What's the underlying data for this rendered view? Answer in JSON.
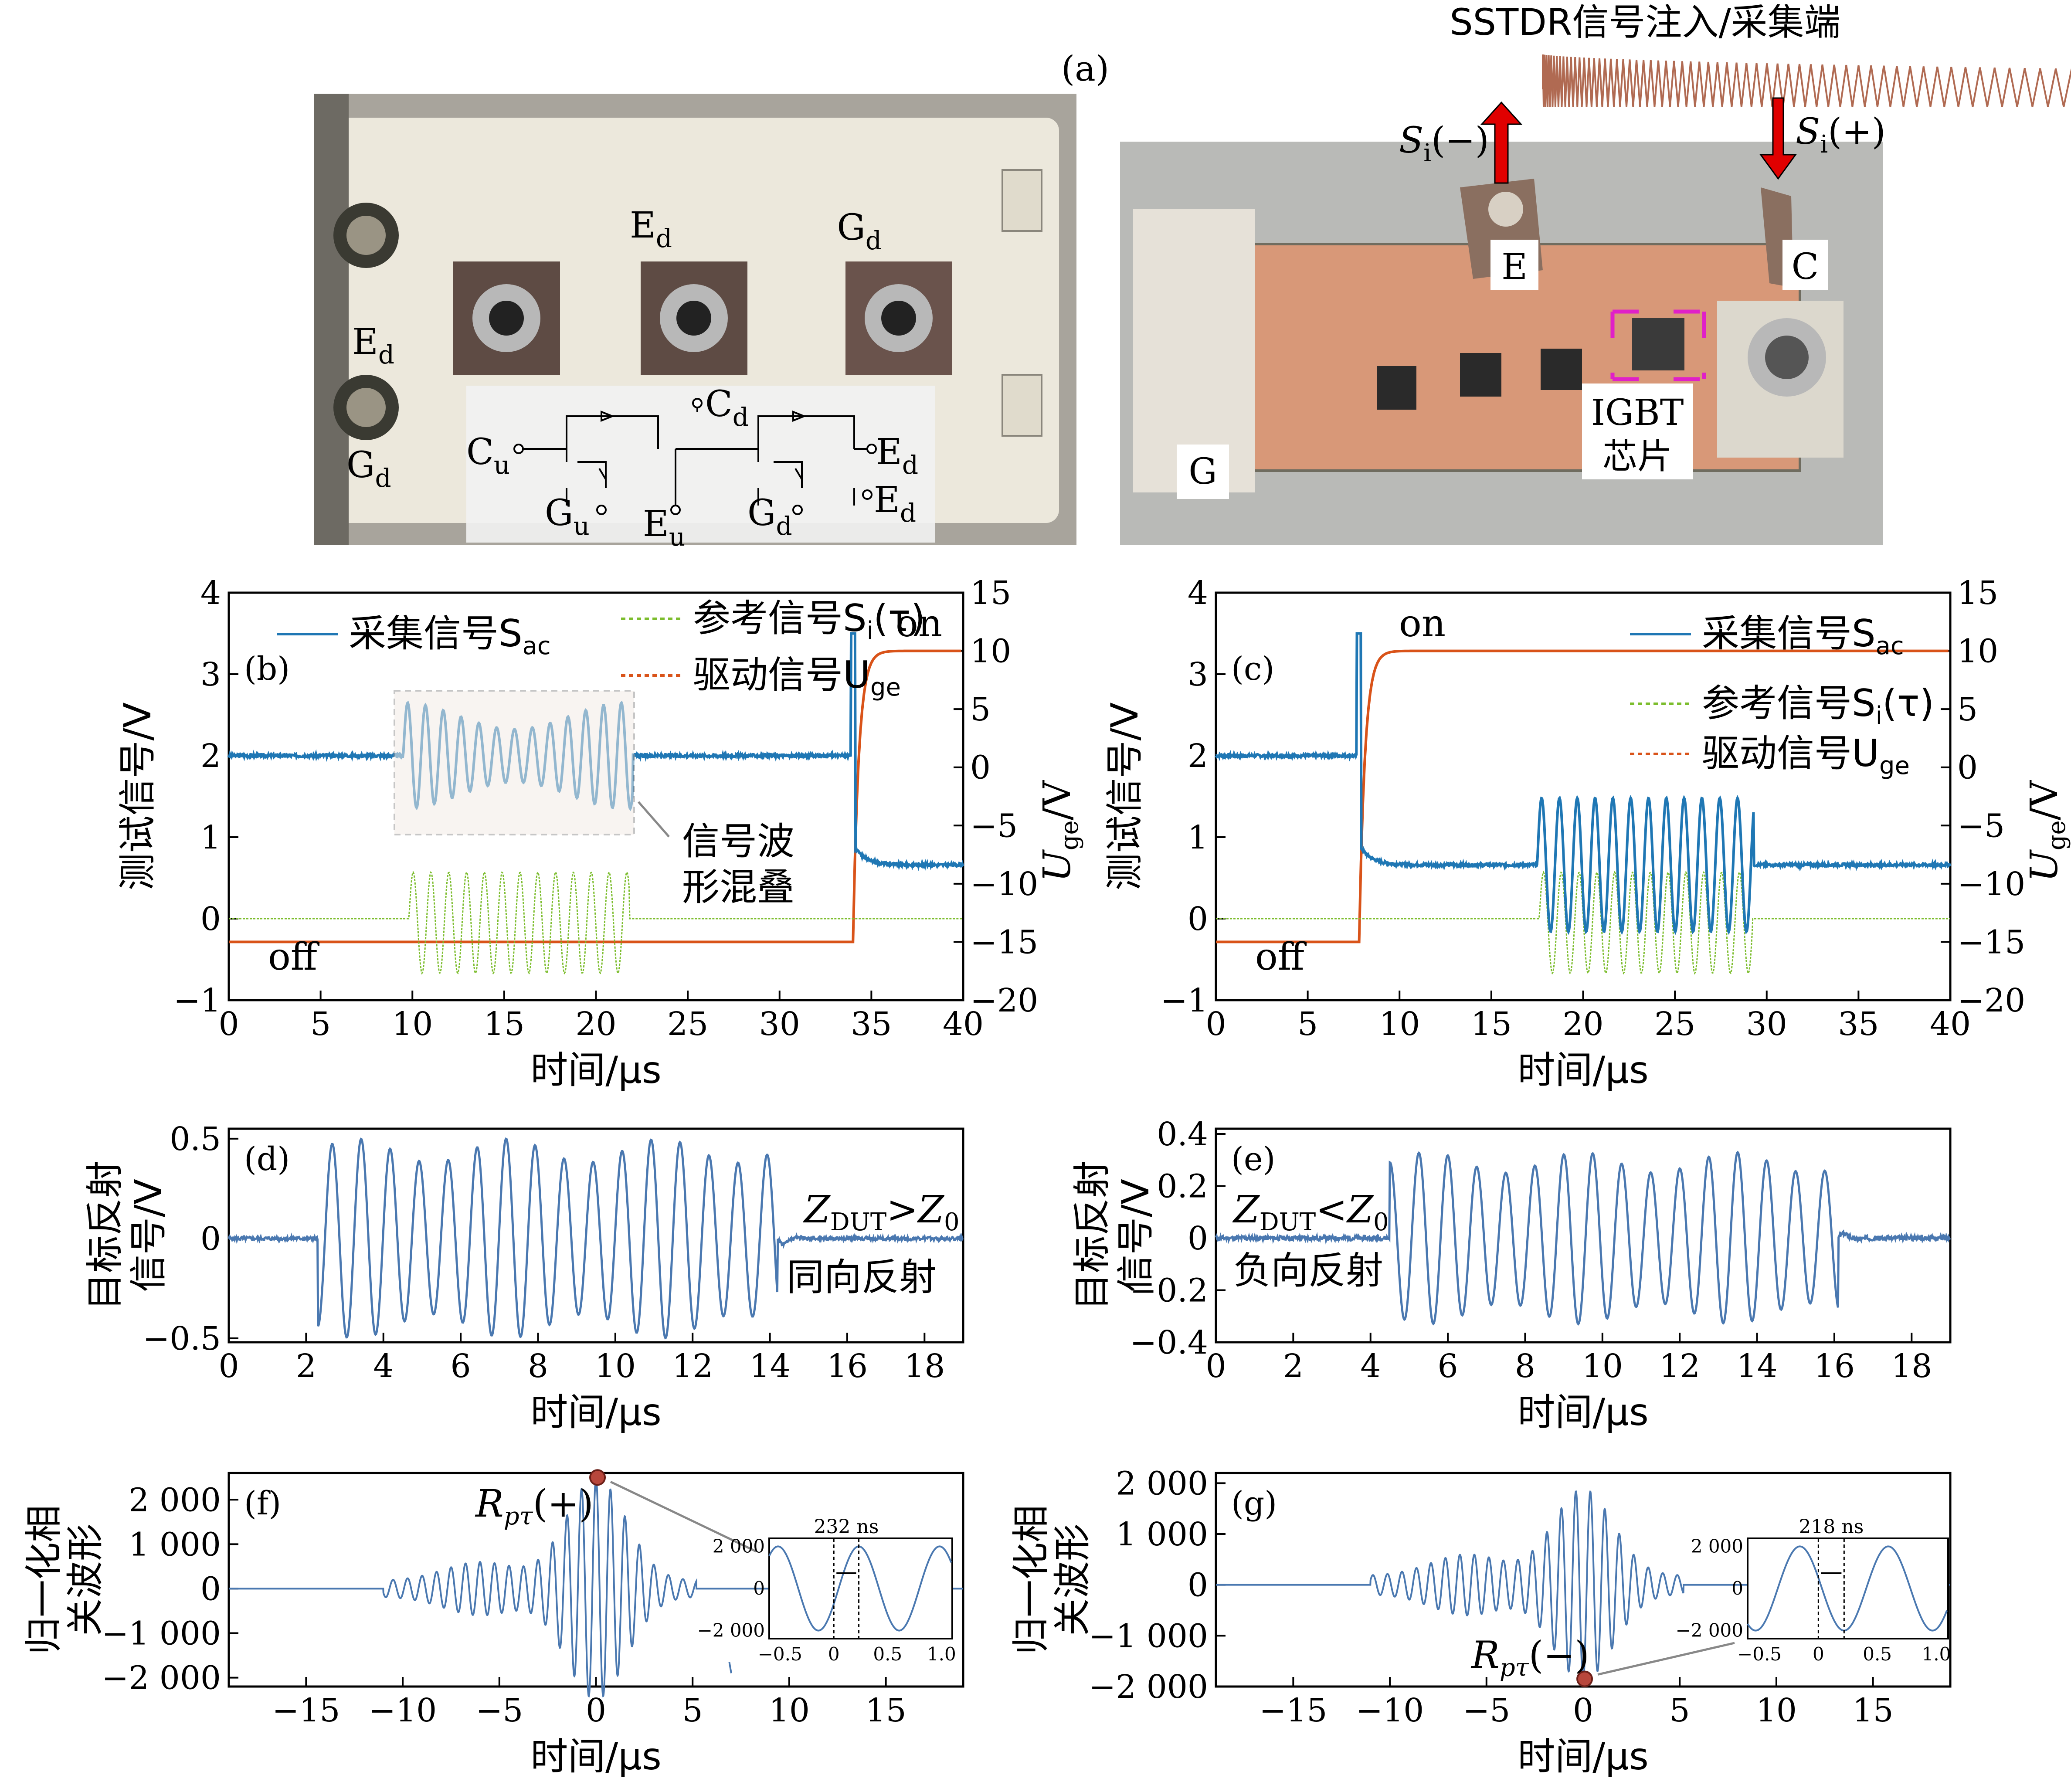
{
  "figure_label": "(a)",
  "photo_left": {
    "labels": [
      "E",
      "d",
      "G",
      "d",
      "E",
      "d",
      "G",
      "d"
    ],
    "schematic": [
      "C",
      "d",
      "C",
      "u",
      "E",
      "d",
      "E",
      "d",
      "G",
      "u",
      "E",
      "u",
      "G",
      "d"
    ]
  },
  "photo_right": {
    "title": "SSTDR信号注入/采集端",
    "si_minus": "S",
    "si_minus_sub": "i",
    "si_minus_sign": "(−)",
    "si_plus": "S",
    "si_plus_sub": "i",
    "si_plus_sign": "(+)",
    "E": "E",
    "C": "C",
    "G": "G",
    "chip1": "IGBT",
    "chip2": "芯片"
  },
  "chart_data": [
    {
      "panel": "(b)",
      "type": "line",
      "xlabel": "时间/μs",
      "ylabel": "测试信号/V",
      "y2label": "U",
      "y2label_sub": "ge",
      "y2label_unit": "/V",
      "xlim": [
        0,
        40
      ],
      "ylim": [
        -1,
        4
      ],
      "y2lim": [
        -20,
        15
      ],
      "xticks": [
        "0",
        "5",
        "10",
        "15",
        "20",
        "25",
        "30",
        "35",
        "40"
      ],
      "yticks": [
        "−1",
        "0",
        "1",
        "2",
        "3",
        "4"
      ],
      "y2ticks": [
        "−20",
        "−15",
        "−10",
        "−5",
        "0",
        "5",
        "10",
        "15"
      ],
      "legend": [
        "采集信号S",
        "ac",
        "参考信号S",
        "i",
        "(τ)",
        "驱动信号U",
        "ge"
      ],
      "annotations": [
        "off",
        "on",
        "信号波",
        "形混叠"
      ],
      "series": [
        {
          "name": "采集信号Sac",
          "color": "#1f77b4",
          "baseline": 2.0,
          "burst": [
            9.5,
            22
          ],
          "amp": 0.65,
          "step_at": 34,
          "after": 0.66
        },
        {
          "name": "参考信号Si(τ)",
          "color": "#7cbd2d",
          "baseline": 0.0,
          "burst": [
            9.8,
            21.8
          ],
          "amp": 0.62
        },
        {
          "name": "驱动信号Uge",
          "color": "#d95319",
          "low": -15,
          "high": 10,
          "step_at": 34
        }
      ]
    },
    {
      "panel": "(c)",
      "type": "line",
      "xlabel": "时间/μs",
      "ylabel": "测试信号/V",
      "y2label": "U",
      "y2label_sub": "ge",
      "y2label_unit": "/V",
      "xlim": [
        0,
        40
      ],
      "ylim": [
        -1,
        4
      ],
      "y2lim": [
        -20,
        15
      ],
      "xticks": [
        "0",
        "5",
        "10",
        "15",
        "20",
        "25",
        "30",
        "35",
        "40"
      ],
      "yticks": [
        "−1",
        "0",
        "1",
        "2",
        "3",
        "4"
      ],
      "y2ticks": [
        "−20",
        "−15",
        "−10",
        "−5",
        "0",
        "5",
        "10",
        "15"
      ],
      "legend": [
        "采集信号S",
        "ac",
        "参考信号S",
        "i",
        "(τ)",
        "驱动信号U",
        "ge"
      ],
      "annotations": [
        "off",
        "on"
      ],
      "series": [
        {
          "name": "采集信号Sac",
          "color": "#1f77b4",
          "baseline": 2.0,
          "step_at": 7.8,
          "after": 0.66,
          "burst": [
            17.5,
            29.3
          ],
          "amp": 0.82
        },
        {
          "name": "参考信号Si(τ)",
          "color": "#7cbd2d",
          "baseline": 0.0,
          "burst": [
            17.6,
            29.2
          ],
          "amp": 0.62
        },
        {
          "name": "驱动信号Uge",
          "color": "#d95319",
          "low": -15,
          "high": 10,
          "step_at": 7.8
        }
      ]
    },
    {
      "panel": "(d)",
      "type": "line",
      "xlabel": "时间/μs",
      "ylabel": [
        "目标反射",
        "信号/V"
      ],
      "xlim": [
        0,
        19
      ],
      "ylim": [
        -0.52,
        0.55
      ],
      "xticks": [
        "0",
        "2",
        "4",
        "6",
        "8",
        "10",
        "12",
        "14",
        "16",
        "18"
      ],
      "yticks": [
        "−0.5",
        "0",
        "0.5"
      ],
      "annotations": [
        "Z",
        "DUT",
        ">Z",
        "0",
        "同向反射"
      ],
      "series": [
        {
          "name": "目标反射信号",
          "color": "#4a78b0",
          "burst": [
            2.3,
            14.2
          ],
          "amp": 0.5
        }
      ]
    },
    {
      "panel": "(e)",
      "type": "line",
      "xlabel": "时间/μs",
      "ylabel": [
        "目标反射",
        "信号/V"
      ],
      "xlim": [
        0,
        19
      ],
      "ylim": [
        -0.4,
        0.42
      ],
      "xticks": [
        "0",
        "2",
        "4",
        "6",
        "8",
        "10",
        "12",
        "14",
        "16",
        "18"
      ],
      "yticks": [
        "−0.4",
        "−0.2",
        "0",
        "0.2",
        "0.4"
      ],
      "annotations": [
        "Z",
        "DUT",
        "<Z",
        "0",
        "负向反射"
      ],
      "series": [
        {
          "name": "目标反射信号",
          "color": "#4a78b0",
          "burst": [
            4.5,
            16.1
          ],
          "amp": 0.33
        }
      ]
    },
    {
      "panel": "(f)",
      "type": "line",
      "xlabel": "时间/μs",
      "ylabel": [
        "归一化相",
        "关波形"
      ],
      "xlim": [
        -19,
        19
      ],
      "ylim": [
        -2200,
        2600
      ],
      "xticks": [
        "−15",
        "−10",
        "−5",
        "0",
        "5",
        "10",
        "15"
      ],
      "yticks": [
        "−2 000",
        "−1 000",
        "0",
        "1 000",
        "2 000"
      ],
      "peak_label": [
        "R",
        "pτ",
        "(+)"
      ],
      "inset": {
        "label": "232 ns",
        "xticks": [
          "−0.5",
          "0",
          "0.5",
          "1.0"
        ],
        "yticks": [
          "2 000",
          "0",
          "−2 000"
        ]
      },
      "series": [
        {
          "name": "归一化相关波形",
          "color": "#4a78b0",
          "peak": 2500
        }
      ]
    },
    {
      "panel": "(g)",
      "type": "line",
      "xlabel": "时间/μs",
      "ylabel": [
        "归一化相",
        "关波形"
      ],
      "xlim": [
        -19,
        19
      ],
      "ylim": [
        -2000,
        2200
      ],
      "xticks": [
        "−15",
        "−10",
        "−5",
        "0",
        "5",
        "10",
        "15"
      ],
      "yticks": [
        "−2 000",
        "−1 000",
        "0",
        "1 000",
        "2 000"
      ],
      "peak_label": [
        "R",
        "pτ",
        "(−)"
      ],
      "inset": {
        "label": "218 ns",
        "xticks": [
          "−0.5",
          "0",
          "0.5",
          "1.0"
        ],
        "yticks": [
          "2 000",
          "0",
          "−2 000"
        ]
      },
      "series": [
        {
          "name": "归一化相关波形",
          "color": "#4a78b0",
          "peak": -1850
        }
      ]
    }
  ]
}
